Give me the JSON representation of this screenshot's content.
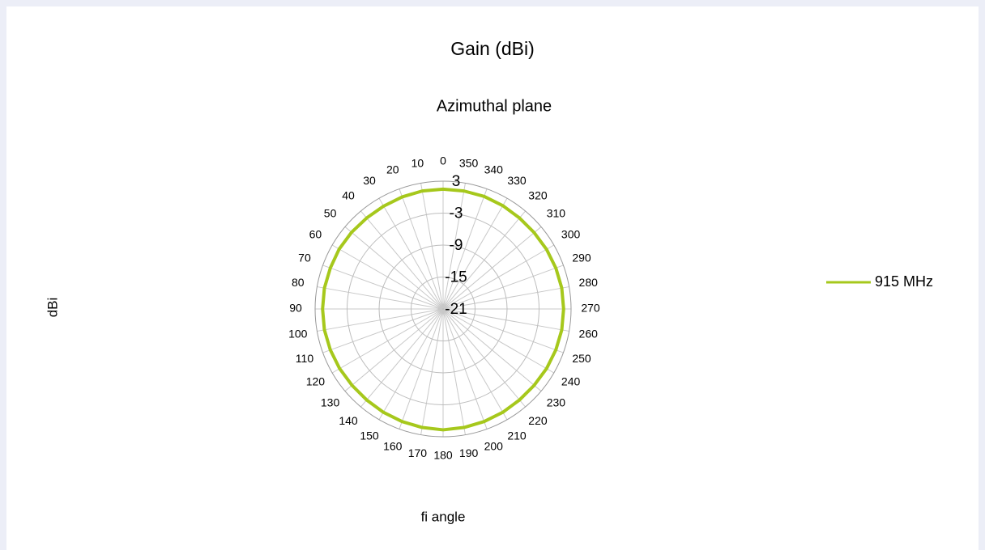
{
  "chart_data": {
    "type": "polar",
    "title": "Gain (dBi)",
    "subtitle": "Azimuthal plane",
    "xlabel": "fi angle",
    "ylabel": "dBi",
    "categories": [
      0,
      10,
      20,
      30,
      40,
      50,
      60,
      70,
      80,
      90,
      100,
      110,
      120,
      130,
      140,
      150,
      160,
      170,
      180,
      190,
      200,
      210,
      220,
      230,
      240,
      250,
      260,
      270,
      280,
      290,
      300,
      310,
      320,
      330,
      340,
      350
    ],
    "series": [
      {
        "name": "915 MHz",
        "color": "#a6c81c",
        "values": [
          1.5,
          1.5,
          1.4,
          1.3,
          1.3,
          1.4,
          1.5,
          1.5,
          1.6,
          1.6,
          1.6,
          1.5,
          1.4,
          1.3,
          1.3,
          1.4,
          1.5,
          1.6,
          1.7,
          1.6,
          1.5,
          1.4,
          1.3,
          1.3,
          1.4,
          1.5,
          1.6,
          1.6,
          1.6,
          1.5,
          1.4,
          1.3,
          1.3,
          1.4,
          1.5,
          1.5
        ]
      }
    ],
    "ylim": [
      -21,
      3
    ],
    "yticks": [
      3,
      -3,
      -9,
      -15,
      -21
    ],
    "grid": true,
    "legend": "right"
  }
}
